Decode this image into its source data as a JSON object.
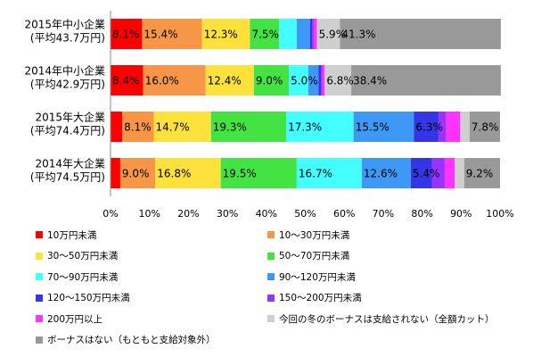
{
  "chart_data": {
    "type": "bar",
    "orientation": "horizontal",
    "stacked": true,
    "title": "",
    "xlabel": "",
    "ylabel": "",
    "xlim": [
      0,
      100
    ],
    "x_ticks": [
      "0%",
      "10%",
      "20%",
      "30%",
      "40%",
      "50%",
      "60%",
      "70%",
      "80%",
      "90%",
      "100%"
    ],
    "grid": false,
    "legend_position": "bottom",
    "categories": [
      "2015年中小企業\n(平均43.7万円)",
      "2014年中小企業\n(平均42.9万円)",
      "2015年大企業\n(平均74.4万円)",
      "2014年大企業\n(平均74.5万円)"
    ],
    "series": [
      {
        "name": "10万円未満",
        "color": "#ff0000",
        "values": [
          8.1,
          8.4,
          3.0,
          2.5
        ],
        "labels": [
          "8.1%",
          "8.4%",
          "",
          ""
        ]
      },
      {
        "name": "10～30万円未満",
        "color": "#f79646",
        "values": [
          15.4,
          16.0,
          8.1,
          9.0
        ],
        "labels": [
          "15.4%",
          "16.0%",
          "8.1%",
          "9.0%"
        ]
      },
      {
        "name": "30～50万円未満",
        "color": "#ffe13c",
        "values": [
          12.3,
          12.4,
          14.7,
          16.8
        ],
        "labels": [
          "12.3%",
          "12.4%",
          "14.7%",
          "16.8%"
        ]
      },
      {
        "name": "50～70万円未満",
        "color": "#44e344",
        "values": [
          7.5,
          9.0,
          19.3,
          19.5
        ],
        "labels": [
          "7.5%",
          "9.0%",
          "19.3%",
          "19.5%"
        ]
      },
      {
        "name": "70～90万円未満",
        "color": "#44ffff",
        "values": [
          4.5,
          5.0,
          17.3,
          16.7
        ],
        "labels": [
          "",
          "5.0%",
          "17.3%",
          "16.7%"
        ]
      },
      {
        "name": "90～120万円未満",
        "color": "#3d99f5",
        "values": [
          3.4,
          2.6,
          15.5,
          12.6
        ],
        "labels": [
          "",
          "",
          "15.5%",
          "12.6%"
        ]
      },
      {
        "name": "120～150万円未満",
        "color": "#3535e8",
        "values": [
          0.6,
          0.6,
          6.3,
          5.4
        ],
        "labels": [
          "",
          "",
          "6.3%",
          "5.4%"
        ]
      },
      {
        "name": "150～200万円未満",
        "color": "#9933ff",
        "values": [
          0.4,
          0.4,
          2.0,
          3.3
        ],
        "labels": [
          "",
          "",
          "",
          ""
        ]
      },
      {
        "name": "200万円以上",
        "color": "#ff33ff",
        "values": [
          0.8,
          0.6,
          3.6,
          2.6
        ],
        "labels": [
          "",
          "",
          "",
          ""
        ]
      },
      {
        "name": "今回の冬のボーナスは支給されない（全額カット）",
        "color": "#cfcfcf",
        "values": [
          5.9,
          6.8,
          2.4,
          2.4
        ],
        "labels": [
          "5.9%",
          "6.8%",
          "",
          ""
        ]
      },
      {
        "name": "ボーナスはない（もともと支給対象外）",
        "color": "#999999",
        "values": [
          41.3,
          38.4,
          7.8,
          9.2
        ],
        "labels": [
          "41.3%",
          "38.4%",
          "7.8%",
          "9.2%"
        ]
      }
    ]
  }
}
